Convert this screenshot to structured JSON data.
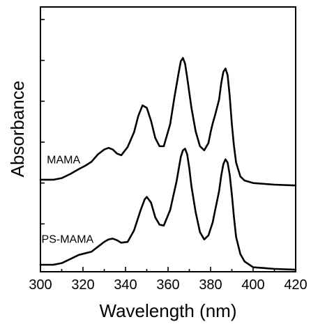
{
  "chart_data": {
    "type": "line",
    "title": "",
    "xlabel": "Wavelength (nm)",
    "ylabel": "Absorbance",
    "xlim": [
      300,
      420
    ],
    "ylim": [
      0,
      3.0
    ],
    "xticks": [
      300,
      320,
      340,
      360,
      380,
      400,
      420
    ],
    "ytick_labels_shown": false,
    "grid": false,
    "series": [
      {
        "name": "MAMA",
        "x": [
          300,
          306,
          310,
          314,
          318,
          321,
          324,
          327,
          330,
          332,
          334,
          336,
          338,
          341,
          344,
          346,
          348,
          350,
          352,
          354,
          356,
          358,
          361,
          363,
          365,
          366,
          367,
          368,
          369,
          371,
          373,
          375,
          377,
          379,
          380,
          381,
          382,
          384,
          385,
          386,
          387,
          388,
          389,
          390,
          391,
          392,
          394,
          396,
          400,
          410,
          420
        ],
        "y": [
          1.04,
          1.04,
          1.06,
          1.11,
          1.17,
          1.21,
          1.26,
          1.35,
          1.41,
          1.43,
          1.41,
          1.36,
          1.34,
          1.44,
          1.62,
          1.82,
          1.95,
          1.92,
          1.76,
          1.55,
          1.45,
          1.45,
          1.72,
          2.05,
          2.35,
          2.49,
          2.53,
          2.46,
          2.29,
          1.92,
          1.63,
          1.45,
          1.4,
          1.49,
          1.62,
          1.73,
          1.82,
          2.02,
          2.22,
          2.36,
          2.4,
          2.32,
          2.06,
          1.72,
          1.45,
          1.25,
          1.08,
          1.03,
          1.0,
          0.98,
          0.97
        ]
      },
      {
        "name": "PS-MAMA",
        "x": [
          300,
          306,
          310,
          314,
          318,
          321,
          324,
          327,
          330,
          332,
          334,
          336,
          338,
          341,
          344,
          347,
          349,
          350,
          352,
          354,
          356,
          358,
          361,
          364,
          366,
          367,
          368,
          369,
          370,
          371,
          373,
          375,
          377,
          379,
          381,
          382,
          384,
          385,
          386,
          387,
          388,
          389,
          390,
          391,
          392,
          394,
          396,
          400,
          410,
          420
        ],
        "y": [
          0.0,
          0.0,
          0.02,
          0.07,
          0.12,
          0.14,
          0.16,
          0.22,
          0.28,
          0.31,
          0.32,
          0.3,
          0.27,
          0.28,
          0.42,
          0.66,
          0.8,
          0.83,
          0.76,
          0.58,
          0.49,
          0.48,
          0.67,
          1.02,
          1.32,
          1.4,
          1.42,
          1.35,
          1.18,
          0.96,
          0.64,
          0.4,
          0.31,
          0.36,
          0.52,
          0.65,
          0.9,
          1.09,
          1.23,
          1.29,
          1.25,
          1.1,
          0.86,
          0.58,
          0.34,
          0.13,
          0.04,
          -0.03,
          -0.05,
          -0.06
        ]
      }
    ],
    "annotations": [
      {
        "text": "MAMA",
        "series": "MAMA",
        "x": 303,
        "y": 1.24
      },
      {
        "text": "PS-MAMA",
        "series": "PS-MAMA",
        "x": 300.5,
        "y": 0.27
      }
    ]
  }
}
